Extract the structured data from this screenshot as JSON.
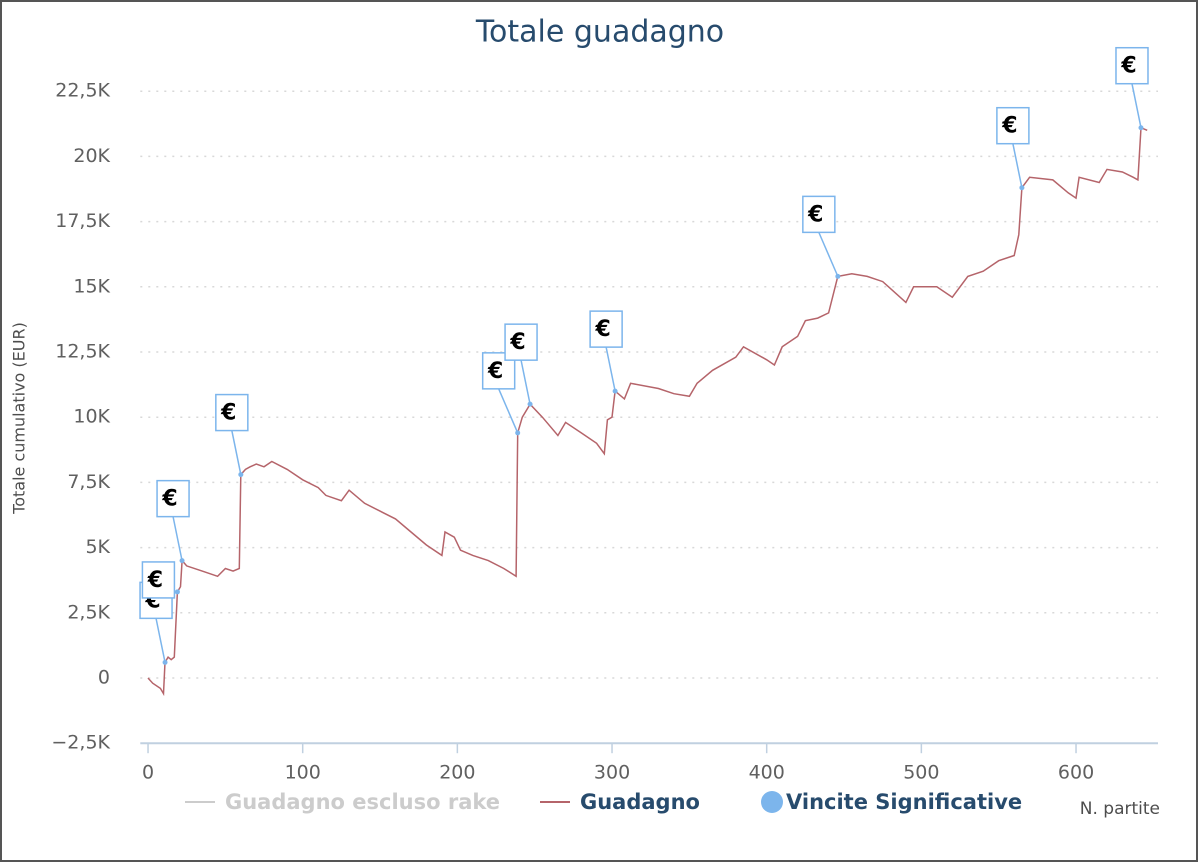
{
  "chart_data": {
    "type": "line",
    "title": "Totale guadagno",
    "y_label": "Totale cumulativo (EUR)",
    "x_label": "N. partite",
    "xlim": [
      -5,
      653
    ],
    "xticks": [
      0,
      100,
      200,
      300,
      400,
      500,
      600
    ],
    "ylim": [
      -2500,
      22500
    ],
    "yticks": [
      {
        "value": -2500,
        "label": "−2,5K"
      },
      0,
      {
        "value": 2500,
        "label": "2,5K"
      },
      {
        "value": 5000,
        "label": "5K"
      },
      {
        "value": 7500,
        "label": "7,5K"
      },
      {
        "value": 10000,
        "label": "10K"
      },
      {
        "value": 12500,
        "label": "12,5K"
      },
      {
        "value": 15000,
        "label": "15K"
      },
      {
        "value": 17500,
        "label": "17,5K"
      },
      {
        "value": 20000,
        "label": "20K"
      },
      {
        "value": 22500,
        "label": "22,5K"
      }
    ],
    "grid": true,
    "series": [
      {
        "name": "Guadagno escluso rake",
        "color": "#cccccc",
        "visible": false
      },
      {
        "name": "Guadagno",
        "color": "#b5646a",
        "visible": true,
        "x": [
          0,
          3,
          8,
          10,
          11,
          13,
          15,
          17,
          19,
          21,
          22,
          25,
          35,
          45,
          50,
          55,
          59,
          60,
          63,
          66,
          70,
          75,
          80,
          90,
          100,
          110,
          115,
          125,
          130,
          140,
          150,
          160,
          170,
          180,
          190,
          192,
          198,
          202,
          210,
          220,
          230,
          238,
          239,
          242,
          247,
          255,
          265,
          270,
          280,
          290,
          295,
          297,
          300,
          302,
          308,
          312,
          330,
          340,
          350,
          355,
          365,
          380,
          385,
          400,
          405,
          410,
          420,
          425,
          433,
          440,
          446,
          455,
          465,
          475,
          490,
          495,
          510,
          520,
          530,
          540,
          550,
          560,
          563,
          565,
          570,
          585,
          595,
          600,
          602,
          615,
          620,
          630,
          637,
          640,
          642,
          646
        ],
        "values": [
          0,
          -200,
          -400,
          -600,
          600,
          800,
          700,
          800,
          3300,
          3500,
          4500,
          4300,
          4100,
          3900,
          4200,
          4100,
          4200,
          7800,
          8000,
          8100,
          8200,
          8100,
          8300,
          8000,
          7600,
          7300,
          7000,
          6800,
          7200,
          6700,
          6400,
          6100,
          5600,
          5100,
          4700,
          5600,
          5400,
          4900,
          4700,
          4500,
          4200,
          3900,
          9400,
          10000,
          10500,
          10000,
          9300,
          9800,
          9400,
          9000,
          8600,
          9900,
          10000,
          11000,
          10700,
          11300,
          11100,
          10900,
          10800,
          11300,
          11800,
          12300,
          12700,
          12200,
          12000,
          12700,
          13100,
          13700,
          13800,
          14000,
          15400,
          15500,
          15400,
          15200,
          14400,
          15000,
          15000,
          14600,
          15400,
          15600,
          16000,
          16200,
          17000,
          18800,
          19200,
          19100,
          18600,
          18400,
          19200,
          19000,
          19500,
          19400,
          19200,
          19100,
          21100,
          21000
        ]
      },
      {
        "name": "Vincite Significative",
        "color": "#7cb5ec",
        "visible": true,
        "x": [
          11,
          19,
          22,
          60,
          239,
          247,
          302,
          446,
          565,
          642
        ],
        "values": [
          600,
          3300,
          4500,
          7800,
          9400,
          10500,
          11000,
          15400,
          18800,
          21100
        ],
        "flag_labels": [
          "€",
          "€",
          "€",
          "€",
          "€",
          "€",
          "€",
          "€",
          "€",
          "€"
        ]
      }
    ]
  }
}
